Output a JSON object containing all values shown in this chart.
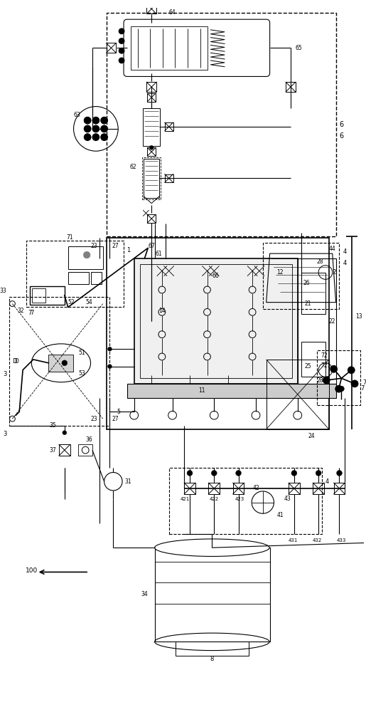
{
  "bg_color": "#ffffff",
  "fig_width": 5.15,
  "fig_height": 10.0,
  "dpi": 100
}
